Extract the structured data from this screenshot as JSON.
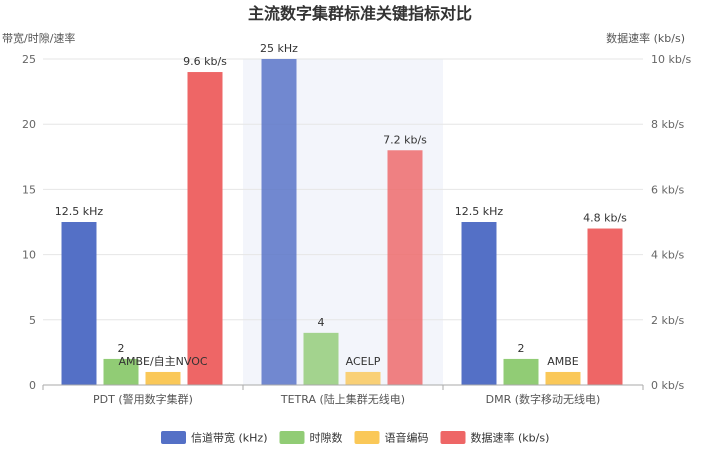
{
  "chart_data": {
    "type": "bar",
    "title": "主流数字集群标准关键指标对比",
    "ylabel_left": "带宽/时隙/速率",
    "ylabel_right": "数据速率 (kb/s)",
    "ylim_left": [
      0,
      25
    ],
    "ylim_right": [
      0,
      10
    ],
    "yticks_left": [
      "0",
      "5",
      "10",
      "15",
      "20",
      "25"
    ],
    "yticks_right": [
      "0 kb/s",
      "2 kb/s",
      "4 kb/s",
      "6 kb/s",
      "8 kb/s",
      "10 kb/s"
    ],
    "categories": [
      "PDT (警用数字集群)",
      "TETRA (陆上集群无线电)",
      "DMR (数字移动无线电)"
    ],
    "highlighted_category": 1,
    "series": [
      {
        "name": "信道带宽 (kHz)",
        "axis": "left",
        "color": "#5470c6",
        "values": [
          12.5,
          25,
          12.5
        ],
        "labels": [
          "12.5 kHz",
          "25 kHz",
          "12.5 kHz"
        ]
      },
      {
        "name": "时隙数",
        "axis": "left",
        "color": "#91cc75",
        "values": [
          2,
          4,
          2
        ],
        "labels": [
          "2",
          "4",
          "2"
        ]
      },
      {
        "name": "语音编码",
        "axis": "left",
        "color": "#fac858",
        "values": [
          1,
          1,
          1
        ],
        "labels": [
          "AMBE/自主NVOC",
          "ACELP",
          "AMBE"
        ]
      },
      {
        "name": "数据速率 (kb/s)",
        "axis": "right",
        "color": "#ee6666",
        "values": [
          9.6,
          7.2,
          4.8
        ],
        "labels": [
          "9.6 kb/s",
          "7.2 kb/s",
          "4.8 kb/s"
        ]
      }
    ],
    "grid": true,
    "legend": "bottom"
  }
}
